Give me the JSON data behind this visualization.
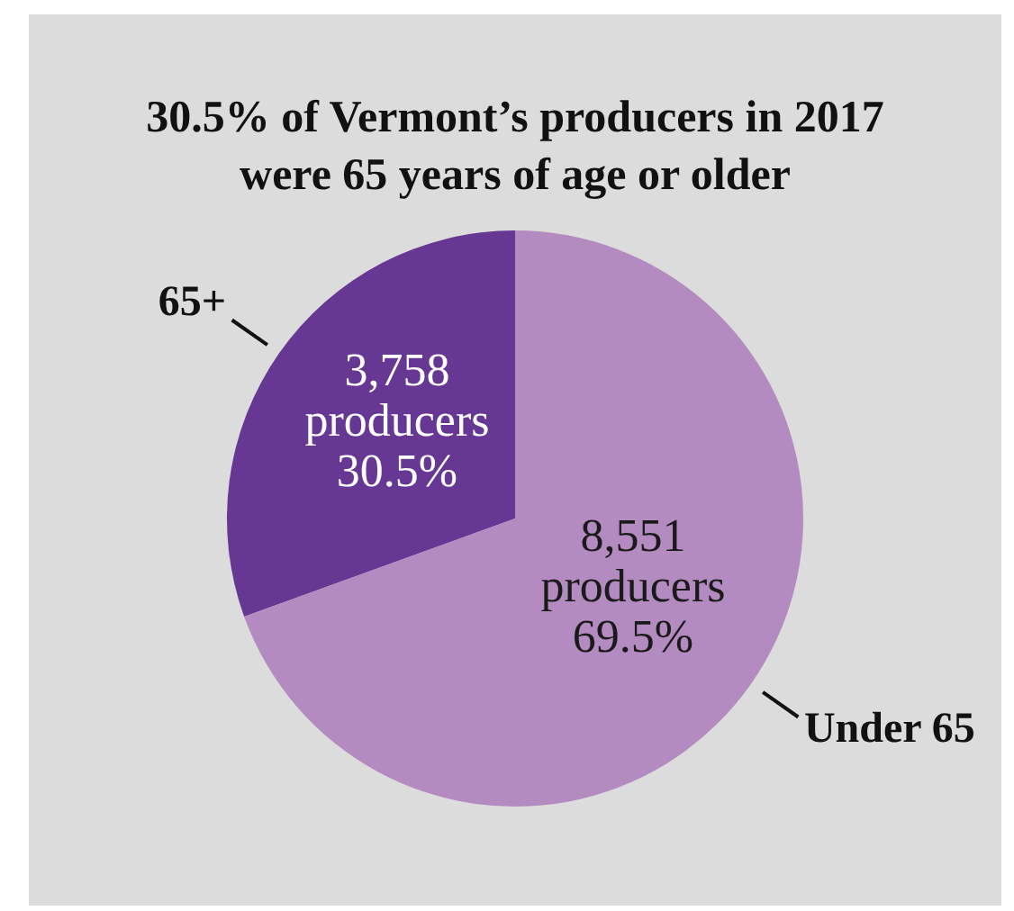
{
  "chart_data": {
    "type": "pie",
    "title": "30.5% of Vermont’s producers in 2017 were 65 years of age or older",
    "categories": [
      "65+",
      "Under 65"
    ],
    "values": [
      3758,
      8551
    ],
    "value_labels": [
      "3,758 producers 30.5%",
      "8,551 producers 69.5%"
    ],
    "colors": [
      "#673794",
      "#b38bc0"
    ],
    "legend": false
  }
}
